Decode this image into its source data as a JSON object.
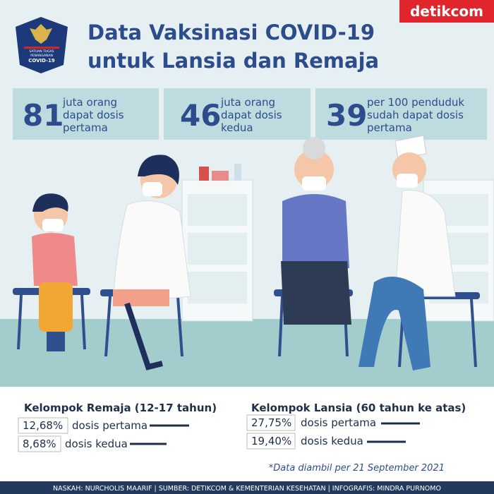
{
  "logo": {
    "line1": "SATUAN TUGAS",
    "line2": "PENANGANAN",
    "line3": "COVID-19"
  },
  "brand": "detikcom",
  "title": {
    "line1": "Data Vaksinasi COVID-19",
    "line2": "untuk Lansia dan Remaja"
  },
  "stats": [
    {
      "number": "81",
      "line1": "juta orang",
      "line2": "dapat dosis",
      "line3": "pertama"
    },
    {
      "number": "46",
      "line1": "juta orang",
      "line2": "dapat dosis",
      "line3": "kedua"
    },
    {
      "number": "39",
      "line1": "per 100 penduduk",
      "line2": "sudah dapat dosis",
      "line3": "pertama"
    }
  ],
  "groups": [
    {
      "title": "Kelompok Remaja (12-17 tahun)",
      "rows": [
        {
          "percent": "12,68%",
          "label": "dosis pertama"
        },
        {
          "percent": "8,68%",
          "label": "dosis kedua"
        }
      ]
    },
    {
      "title": "Kelompok Lansia (60 tahun ke atas)",
      "rows": [
        {
          "percent": "27,75%",
          "label": "dosis pertama"
        },
        {
          "percent": "19,40%",
          "label": "dosis kedua"
        }
      ]
    }
  ],
  "note": "*Data diambil per 21 September 2021",
  "footer": "NASKAH: NURCHOLIS MAARIF | SUMBER: DETIKCOM & KEMENTERIAN KESEHATAN | INFOGRAFIS: MINDRA PURNOMO"
}
